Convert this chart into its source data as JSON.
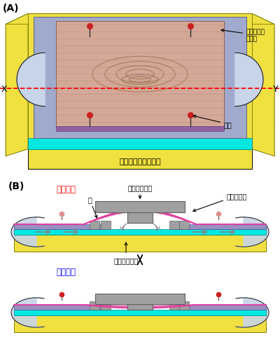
{
  "title_A": "(A)",
  "title_B": "(B)",
  "label_muscle_sheet": "ミミズ筋肉\nシート",
  "label_chip": "マイクロ流体チップ",
  "label_pin": "ピン",
  "label_X": "X",
  "label_Y": "Y",
  "label_valve_open": "バルブ開",
  "label_valve_closed": "バルブ閉",
  "label_membrane": "膜",
  "label_pusher": "プッシュバー",
  "label_chamber": "チャンバー",
  "label_channel": "マイクロ流路",
  "color_yellow": "#F0E040",
  "color_blue_plate": "#A0AACC",
  "color_pink": "#D4A898",
  "color_purple": "#9890C0",
  "color_purple_strip": "#9060A0",
  "color_cyan": "#00E8E0",
  "color_magenta": "#E040A0",
  "color_gray": "#A0A0A0",
  "color_gray_dark": "#606060",
  "color_arc_fill": "#C8D4E8",
  "color_pin_red": "#CC2020",
  "color_pin_pink": "#E09090",
  "bg_color": "#FFFFFF"
}
